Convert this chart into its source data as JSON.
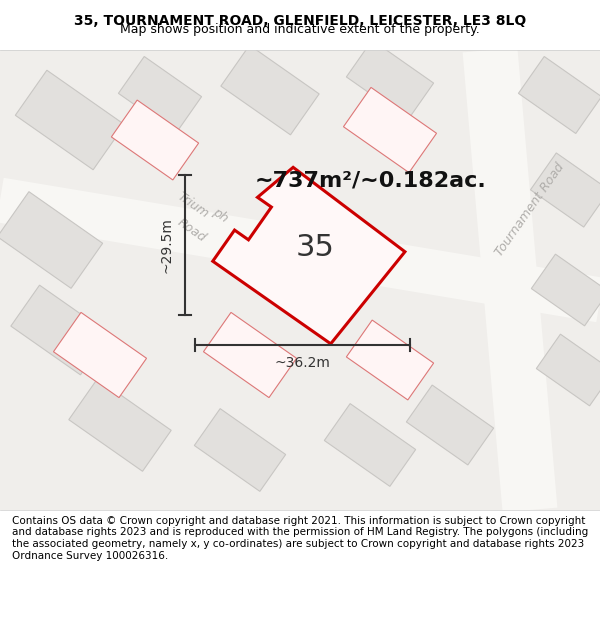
{
  "title_line1": "35, TOURNAMENT ROAD, GLENFIELD, LEICESTER, LE3 8LQ",
  "title_line2": "Map shows position and indicative extent of the property.",
  "footer_text": "Contains OS data © Crown copyright and database right 2021. This information is subject to Crown copyright and database rights 2023 and is reproduced with the permission of HM Land Registry. The polygons (including the associated geometry, namely x, y co-ordinates) are subject to Crown copyright and database rights 2023 Ordnance Survey 100026316.",
  "bg_color": "#f0eeeb",
  "map_bg": "#f5f4f1",
  "road_color_light": "#ffffff",
  "building_fill": "#e8e6e3",
  "building_outline": "#c8c6c3",
  "red_outline": "#cc0000",
  "red_fill_outline": "#dd1111",
  "dim_color": "#333333",
  "road_label_color": "#aaaaaa",
  "area_text": "~737m²/~0.182ac.",
  "property_label": "35",
  "dim_width": "~36.2m",
  "dim_height": "~29.5m",
  "title_fontsize": 10,
  "subtitle_fontsize": 9,
  "footer_fontsize": 7.5
}
